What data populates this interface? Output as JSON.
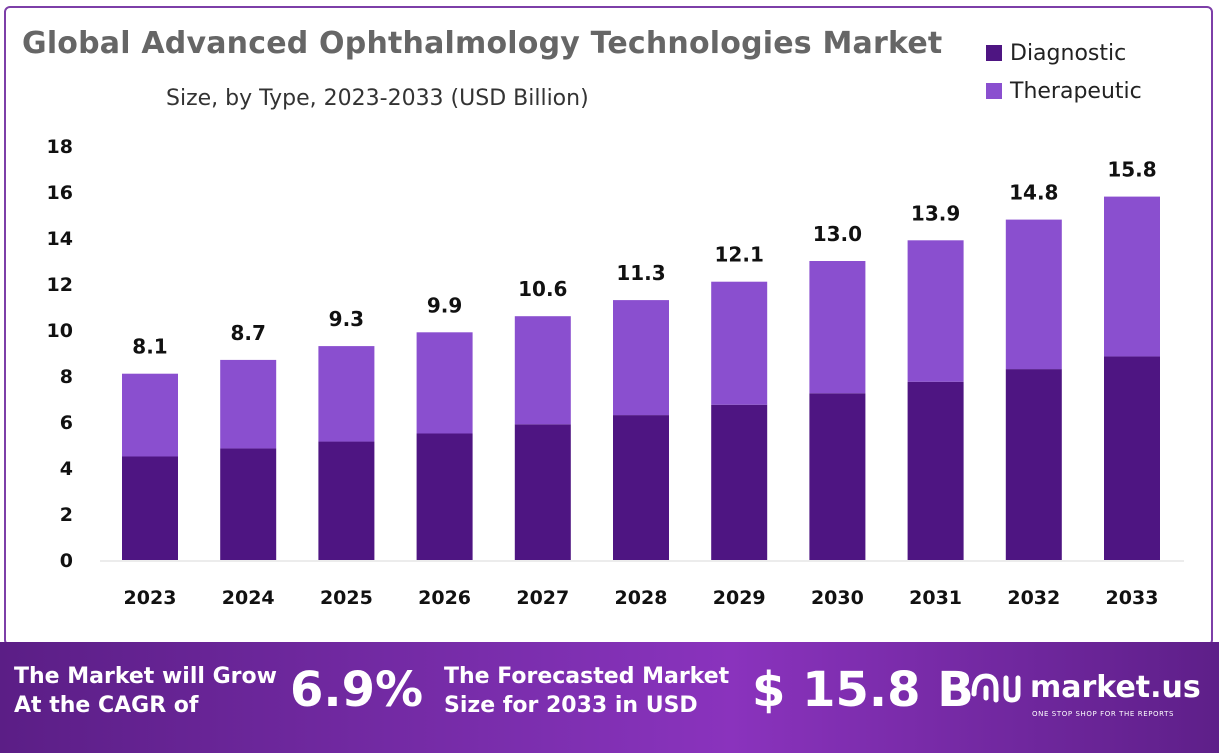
{
  "chart_data": {
    "type": "bar",
    "stacked": true,
    "title": "Global Advanced Ophthalmology Technologies Market",
    "subtitle": "Size, by Type, 2023-2033 (USD Billion)",
    "categories": [
      "2023",
      "2024",
      "2025",
      "2026",
      "2027",
      "2028",
      "2029",
      "2030",
      "2031",
      "2032",
      "2033"
    ],
    "series": [
      {
        "name": "Diagnostic",
        "color": "#4e1582",
        "values": [
          4.5,
          4.85,
          5.15,
          5.5,
          5.9,
          6.3,
          6.75,
          7.25,
          7.75,
          8.3,
          8.85
        ]
      },
      {
        "name": "Therapeutic",
        "color": "#8a4fcf",
        "values": [
          3.6,
          3.85,
          4.15,
          4.4,
          4.7,
          5.0,
          5.35,
          5.75,
          6.15,
          6.5,
          6.95
        ]
      }
    ],
    "totals": [
      8.1,
      8.7,
      9.3,
      9.9,
      10.6,
      11.3,
      12.1,
      13.0,
      13.9,
      14.8,
      15.8
    ],
    "total_labels": [
      "8.1",
      "8.7",
      "9.3",
      "9.9",
      "10.6",
      "11.3",
      "12.1",
      "13.0",
      "13.9",
      "14.8",
      "15.8"
    ],
    "yticks": [
      0,
      2,
      4,
      6,
      8,
      10,
      12,
      14,
      16,
      18
    ],
    "ylim": [
      0,
      18
    ],
    "grid": false,
    "legend_position": "top-right"
  },
  "legend": {
    "diagnostic": "Diagnostic",
    "therapeutic": "Therapeutic"
  },
  "footer": {
    "cagr_text_line1": "The Market will Grow",
    "cagr_text_line2": "At the CAGR of",
    "cagr_value": "6.9%",
    "forecast_text_line1": "The Forecasted Market",
    "forecast_text_line2": "Size for 2033 in USD",
    "forecast_value": "$ 15.8 B",
    "brand_name": "market.us",
    "brand_tagline": "ONE STOP SHOP FOR THE REPORTS"
  }
}
